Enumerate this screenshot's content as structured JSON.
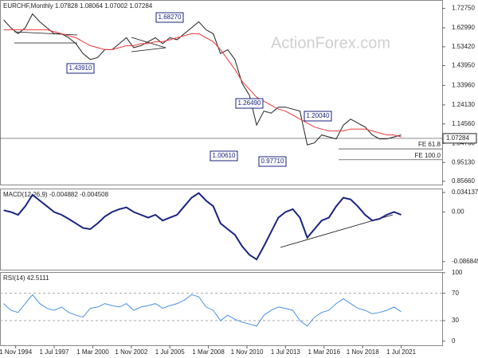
{
  "watermark": "ActionForex.com",
  "chart_data": [
    {
      "type": "line",
      "title": "EURCHF,Monthly  1.07828 1.08064 1.07002 1.07284",
      "x": [
        "1994-01-01",
        "1994-07-01",
        "1995-01-01",
        "1995-07-01",
        "1996-01-01",
        "1996-07-01",
        "1997-01-01",
        "1997-07-01",
        "1998-01-01",
        "1998-07-01",
        "1999-01-01",
        "1999-07-01",
        "2000-01-01",
        "2000-07-01",
        "2001-01-01",
        "2001-07-01",
        "2002-01-01",
        "2002-07-01",
        "2003-01-01",
        "2003-07-01",
        "2004-01-01",
        "2004-07-01",
        "2005-01-01",
        "2005-07-01",
        "2006-01-01",
        "2006-07-01",
        "2007-01-01",
        "2007-07-01",
        "2008-01-01",
        "2008-07-01",
        "2009-01-01",
        "2009-07-01",
        "2010-01-01",
        "2010-07-01",
        "2011-01-01",
        "2011-07-01",
        "2012-01-01",
        "2012-07-01",
        "2013-01-01",
        "2013-07-01",
        "2014-01-01",
        "2014-07-01",
        "2015-01-01",
        "2015-07-01",
        "2016-01-01",
        "2016-07-01",
        "2017-01-01",
        "2017-07-01",
        "2018-01-01",
        "2018-07-01",
        "2019-01-01",
        "2019-07-01",
        "2020-01-01",
        "2020-07-01",
        "2021-01-01",
        "2021-07-01"
      ],
      "series": [
        {
          "color": "#222222",
          "values": [
            1.67,
            1.63,
            1.6,
            1.63,
            1.7,
            1.66,
            1.63,
            1.6,
            1.6,
            1.58,
            1.55,
            1.5,
            1.47,
            1.48,
            1.52,
            1.52,
            1.55,
            1.58,
            1.53,
            1.54,
            1.56,
            1.58,
            1.55,
            1.58,
            1.57,
            1.6,
            1.63,
            1.66,
            1.62,
            1.6,
            1.5,
            1.52,
            1.47,
            1.35,
            1.29,
            1.14,
            1.21,
            1.2,
            1.23,
            1.23,
            1.22,
            1.21,
            1.04,
            1.05,
            1.09,
            1.08,
            1.07,
            1.14,
            1.17,
            1.15,
            1.13,
            1.09,
            1.07,
            1.07,
            1.08,
            1.09
          ]
        },
        {
          "color": "#e8383d",
          "values": [
            1.62,
            1.62,
            1.62,
            1.62,
            1.62,
            1.62,
            1.62,
            1.61,
            1.6,
            1.59,
            1.58,
            1.56,
            1.54,
            1.53,
            1.52,
            1.52,
            1.53,
            1.54,
            1.54,
            1.55,
            1.55,
            1.56,
            1.56,
            1.57,
            1.58,
            1.59,
            1.6,
            1.6,
            1.58,
            1.56,
            1.52,
            1.47,
            1.42,
            1.36,
            1.32,
            1.28,
            1.26,
            1.24,
            1.22,
            1.21,
            1.19,
            1.17,
            1.15,
            1.13,
            1.12,
            1.11,
            1.11,
            1.11,
            1.12,
            1.12,
            1.12,
            1.11,
            1.1,
            1.09,
            1.09,
            1.08
          ]
        }
      ],
      "xlim": [
        "1993-10-01",
        "2024-05-01"
      ],
      "ylim": [
        0.84,
        1.77
      ],
      "yticks": [
        {
          "value": 1.7275,
          "label": "1.72750"
        },
        {
          "value": 1.6299,
          "label": "1.62990"
        },
        {
          "value": 1.5342,
          "label": "1.53420"
        },
        {
          "value": 1.4395,
          "label": "1.43950"
        },
        {
          "value": 1.3396,
          "label": "1.33960"
        },
        {
          "value": 1.2413,
          "label": "1.24130"
        },
        {
          "value": 1.1456,
          "label": "1.14560"
        },
        {
          "value": 1.0476,
          "label": "1.04760"
        },
        {
          "value": 0.9513,
          "label": "0.95130"
        },
        {
          "value": 0.8566,
          "label": "0.85660"
        }
      ],
      "annotations": [
        "1.68270",
        "1.43910",
        "1.26490",
        "1.00610",
        "0.97710",
        "1.20040"
      ],
      "levels": [
        {
          "label": "FE 61.8",
          "value": 1.02
        },
        {
          "label": "FE 100.0",
          "value": 0.965
        }
      ],
      "last_value": 1.07284
    },
    {
      "type": "line",
      "title": "MACD(12,26,9) -0.004882 -0.004508",
      "series": [
        {
          "color": "#1a237e",
          "values": [
            0.003,
            0.0,
            -0.005,
            0.01,
            0.03,
            0.02,
            0.01,
            0.0,
            -0.005,
            -0.012,
            -0.02,
            -0.028,
            -0.03,
            -0.02,
            -0.008,
            0.0,
            0.005,
            0.008,
            0.0,
            -0.005,
            -0.01,
            -0.005,
            -0.015,
            -0.01,
            -0.005,
            0.01,
            0.025,
            0.033,
            0.02,
            0.01,
            -0.02,
            -0.03,
            -0.04,
            -0.06,
            -0.075,
            -0.083,
            -0.06,
            -0.035,
            -0.01,
            0.0,
            0.005,
            -0.01,
            -0.045,
            -0.03,
            -0.015,
            -0.01,
            0.01,
            0.025,
            0.022,
            0.01,
            -0.005,
            -0.015,
            -0.012,
            -0.005,
            0.0,
            -0.005
          ]
        }
      ],
      "ylim": [
        -0.101,
        0.041
      ],
      "yticks": [
        0.034137,
        {
          "value": 0,
          "label": "0.00"
        },
        -0.086849
      ]
    },
    {
      "type": "line",
      "title": "RSI(14) 42.5111",
      "series": [
        {
          "color": "#4a90e2",
          "values": [
            55,
            45,
            42,
            55,
            68,
            55,
            48,
            45,
            50,
            42,
            38,
            35,
            48,
            50,
            55,
            52,
            50,
            55,
            45,
            50,
            52,
            55,
            48,
            52,
            55,
            60,
            68,
            65,
            50,
            45,
            30,
            38,
            32,
            28,
            25,
            22,
            38,
            45,
            50,
            48,
            45,
            30,
            22,
            35,
            42,
            45,
            55,
            62,
            55,
            48,
            45,
            40,
            42,
            45,
            50,
            43
          ]
        }
      ],
      "ylim": [
        -6,
        101
      ],
      "yticks": [
        100,
        70,
        30,
        0
      ],
      "xticks": [
        {
          "value": "1994-11-01",
          "label": "1 Nov 1994"
        },
        {
          "value": "1997-07-01",
          "label": "1 Jul 1997"
        },
        {
          "value": "2000-03-01",
          "label": "1 Mar 2000"
        },
        {
          "value": "2002-11-01",
          "label": "1 Nov 2002"
        },
        {
          "value": "2005-07-01",
          "label": "1 Jul 2005"
        },
        {
          "value": "2008-03-01",
          "label": "1 Mar 2008"
        },
        {
          "value": "2010-11-01",
          "label": "1 Nov 2010"
        },
        {
          "value": "2013-07-01",
          "label": "1 Jul 2013"
        },
        {
          "value": "2016-03-01",
          "label": "1 Mar 2016"
        },
        {
          "value": "2018-11-01",
          "label": "1 Nov 2018"
        },
        {
          "value": "2021-07-01",
          "label": "1 Jul 2021"
        }
      ]
    }
  ]
}
